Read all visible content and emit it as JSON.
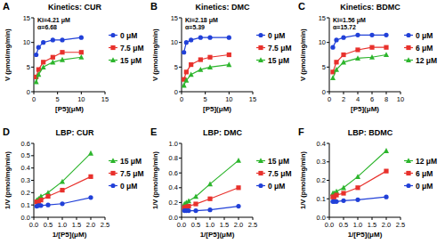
{
  "chart_data": [
    {
      "type": "line",
      "panel": "A",
      "title": "Kinetics: CUR",
      "x_label": "[P5](μM)",
      "y_label": "V (pmol/mg/min)",
      "annotations": [
        "Ki=4.21 μM",
        "α=6.68"
      ],
      "legend": "right",
      "xlim": [
        0,
        15
      ],
      "xticks": [
        0,
        5,
        10,
        15
      ],
      "ylim": [
        0,
        15
      ],
      "yticks": [
        0,
        5,
        10,
        15
      ],
      "x": [
        0.5,
        1,
        2,
        4,
        6,
        10
      ],
      "series": [
        {
          "name": "0 μM",
          "color": "#2140d8",
          "marker": "circle",
          "values": [
            7.5,
            9,
            10,
            10.5,
            10.5,
            11
          ]
        },
        {
          "name": "7.5 μM",
          "color": "#e8312c",
          "marker": "square",
          "values": [
            3,
            4.5,
            6,
            7,
            8,
            8
          ]
        },
        {
          "name": "15 μM",
          "color": "#2db52d",
          "marker": "triangle",
          "values": [
            2,
            3.5,
            5,
            6,
            6.5,
            7
          ]
        }
      ]
    },
    {
      "type": "line",
      "panel": "B",
      "title": "Kinetics: DMC",
      "x_label": "[P5](μM)",
      "y_label": "V (pmol/mg/min)",
      "annotations": [
        "Ki=2.18 μM",
        "α=5.39"
      ],
      "legend": "right",
      "xlim": [
        0,
        15
      ],
      "xticks": [
        0,
        5,
        10,
        15
      ],
      "ylim": [
        0,
        15
      ],
      "yticks": [
        0,
        5,
        10,
        15
      ],
      "x": [
        0.5,
        1,
        2,
        4,
        6,
        10
      ],
      "series": [
        {
          "name": "0 μM",
          "color": "#2140d8",
          "marker": "circle",
          "values": [
            8,
            10,
            10.5,
            11,
            11,
            11
          ]
        },
        {
          "name": "7.5 μM",
          "color": "#e8312c",
          "marker": "square",
          "values": [
            2.5,
            4,
            5.5,
            6.5,
            7,
            7.5
          ]
        },
        {
          "name": "15 μM",
          "color": "#2db52d",
          "marker": "triangle",
          "values": [
            1.3,
            2.3,
            3.5,
            4.5,
            5,
            5.5
          ]
        }
      ]
    },
    {
      "type": "line",
      "panel": "C",
      "title": "Kinetics: BDMC",
      "x_label": "[P5](μM)",
      "y_label": "V (pmol/mg/min)",
      "annotations": [
        "Ki=1.56 μM",
        "α=15.72"
      ],
      "legend": "right",
      "xlim": [
        0,
        10
      ],
      "xticks": [
        0,
        2,
        4,
        6,
        8,
        10
      ],
      "ylim": [
        0,
        15
      ],
      "yticks": [
        0,
        5,
        10,
        15
      ],
      "x": [
        0.5,
        1,
        2,
        4,
        6,
        8
      ],
      "series": [
        {
          "name": "0 μM",
          "color": "#2140d8",
          "marker": "circle",
          "values": [
            9,
            10.5,
            11,
            11.5,
            11.5,
            11.5
          ]
        },
        {
          "name": "6 μM",
          "color": "#e8312c",
          "marker": "square",
          "values": [
            4,
            6,
            7.5,
            8.5,
            9,
            9
          ]
        },
        {
          "name": "12 μM",
          "color": "#2db52d",
          "marker": "triangle",
          "values": [
            2.8,
            4.5,
            6,
            6.8,
            7,
            7.5
          ]
        }
      ]
    },
    {
      "type": "line",
      "panel": "D",
      "title": "LBP: CUR",
      "x_label": "1/[P5](μM)",
      "y_label": "1/V (pmol/mg/min)",
      "legend": "right",
      "xlim": [
        0,
        2.5
      ],
      "xticks": [
        {
          "value": 0,
          "label": "0.0"
        },
        0.5,
        {
          "value": 1,
          "label": "1.0"
        },
        1.5,
        {
          "value": 2,
          "label": "2.0"
        },
        2.5
      ],
      "ylim": [
        0,
        0.6
      ],
      "yticks": [
        {
          "value": 0,
          "label": "0.0"
        },
        0.1,
        0.2,
        0.3,
        0.4,
        0.5,
        0.6
      ],
      "x": [
        2,
        1,
        0.5,
        0.25,
        0.167,
        0.1
      ],
      "series": [
        {
          "name": "15 μM",
          "color": "#2db52d",
          "marker": "triangle",
          "values": [
            0.52,
            0.29,
            0.2,
            0.17,
            0.15,
            0.14
          ]
        },
        {
          "name": "7.5 μM",
          "color": "#e8312c",
          "marker": "square",
          "values": [
            0.33,
            0.22,
            0.17,
            0.14,
            0.125,
            0.125
          ]
        },
        {
          "name": "0 μM",
          "color": "#2140d8",
          "marker": "circle",
          "values": [
            0.16,
            0.11,
            0.1,
            0.095,
            0.095,
            0.09
          ]
        }
      ]
    },
    {
      "type": "line",
      "panel": "E",
      "title": "LBP: DMC",
      "x_label": "1/[P5](μM)",
      "y_label": "1/V (pmol/mg/min)",
      "legend": "right",
      "xlim": [
        0,
        2.5
      ],
      "xticks": [
        {
          "value": 0,
          "label": "0.0"
        },
        0.5,
        {
          "value": 1,
          "label": "1.0"
        },
        1.5,
        {
          "value": 2,
          "label": "2.0"
        },
        2.5
      ],
      "ylim": [
        0,
        1
      ],
      "yticks": [
        {
          "value": 0,
          "label": "0.0"
        },
        0.2,
        0.4,
        0.6,
        0.8,
        {
          "value": 1,
          "label": "1.0"
        }
      ],
      "x": [
        2,
        1,
        0.5,
        0.25,
        0.167,
        0.1
      ],
      "series": [
        {
          "name": "15 μM",
          "color": "#2db52d",
          "marker": "triangle",
          "values": [
            0.77,
            0.45,
            0.28,
            0.22,
            0.2,
            0.18
          ]
        },
        {
          "name": "7.5 μM",
          "color": "#e8312c",
          "marker": "square",
          "values": [
            0.4,
            0.25,
            0.18,
            0.15,
            0.14,
            0.13
          ]
        },
        {
          "name": "0 μM",
          "color": "#2140d8",
          "marker": "circle",
          "values": [
            0.15,
            0.1,
            0.09,
            0.09,
            0.09,
            0.09
          ]
        }
      ]
    },
    {
      "type": "line",
      "panel": "F",
      "title": "LBP: BDMC",
      "x_label": "1/[P5](μM)",
      "y_label": "1/V (pmol/mg/min)",
      "legend": "right",
      "xlim": [
        0,
        2.5
      ],
      "xticks": [
        {
          "value": 0,
          "label": "0.0"
        },
        0.5,
        {
          "value": 1,
          "label": "1.0"
        },
        1.5,
        {
          "value": 2,
          "label": "2.0"
        },
        2.5
      ],
      "ylim": [
        0,
        0.4
      ],
      "yticks": [
        {
          "value": 0,
          "label": "0.0"
        },
        0.1,
        0.2,
        0.3,
        0.4
      ],
      "x": [
        2,
        1,
        0.5,
        0.25,
        0.167,
        0.125
      ],
      "series": [
        {
          "name": "12 μM",
          "color": "#2db52d",
          "marker": "triangle",
          "values": [
            0.36,
            0.22,
            0.16,
            0.14,
            0.13,
            0.13
          ]
        },
        {
          "name": "6 μM",
          "color": "#e8312c",
          "marker": "square",
          "values": [
            0.25,
            0.16,
            0.13,
            0.12,
            0.11,
            0.11
          ]
        },
        {
          "name": "0 μM",
          "color": "#2140d8",
          "marker": "circle",
          "values": [
            0.11,
            0.095,
            0.09,
            0.085,
            0.085,
            0.085
          ]
        }
      ]
    }
  ]
}
